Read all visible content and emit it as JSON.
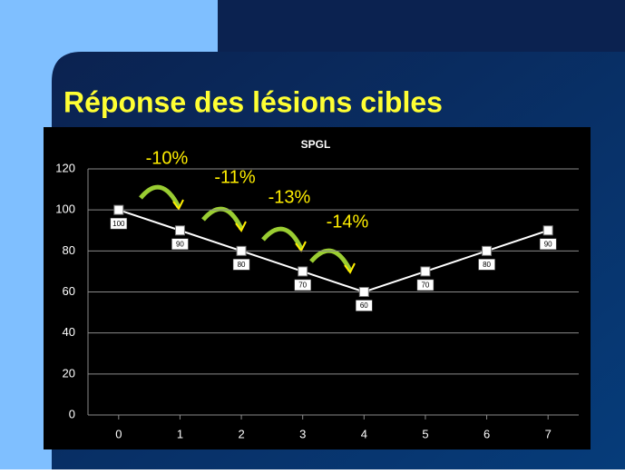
{
  "slide": {
    "title": "Réponse des lésions cibles"
  },
  "chart_data": {
    "type": "line",
    "title": "SPGL",
    "x": [
      0,
      1,
      2,
      3,
      4,
      5,
      6,
      7
    ],
    "series": [
      {
        "color": "#ffffff",
        "values": [
          100,
          90,
          80,
          70,
          60,
          70,
          80,
          90
        ]
      }
    ],
    "xlim": [
      -0.5,
      7.5
    ],
    "xticks": [
      0,
      1,
      2,
      3,
      4,
      5,
      6,
      7
    ],
    "ylim": [
      0,
      120
    ],
    "yticks": [
      0,
      20,
      40,
      60,
      80,
      100,
      120
    ],
    "grid": true,
    "annotations": [
      "-10%",
      "-11%",
      "-13%",
      "-14%"
    ]
  }
}
